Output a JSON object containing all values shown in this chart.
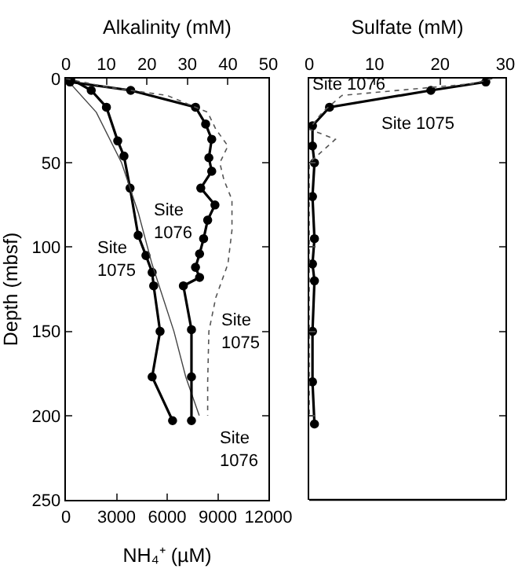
{
  "chart_data": [
    {
      "type": "line",
      "xlabel": "NH₄⁺ (µM)",
      "x2label": "Alkalinity (mM)",
      "ylabel": "Depth (mbsf)",
      "xlim": [
        0,
        12000
      ],
      "xticks": [
        0,
        3000,
        6000,
        9000,
        12000
      ],
      "x2lim": [
        0,
        50
      ],
      "x2ticks": [
        0,
        10,
        20,
        30,
        40,
        50
      ],
      "ylim": [
        250,
        0
      ],
      "yticks": [
        0,
        50,
        100,
        150,
        200,
        250
      ],
      "grid": false,
      "annotations": [
        "Site 1076",
        "Site 1075",
        "Site 1075",
        "Site 1076"
      ],
      "series": [
        {
          "color": "#000000",
          "axis": "x2",
          "marker": "circle",
          "line_style": "solid",
          "x": [
            0,
            1,
            16,
            32,
            34.5,
            36,
            35.3,
            36,
            33.3,
            36.8,
            35,
            34,
            33,
            32,
            33,
            29,
            31,
            31,
            31
          ],
          "values": [
            0,
            2,
            7,
            17,
            27,
            36,
            47,
            55,
            65,
            75,
            84,
            95,
            104,
            112,
            118,
            123,
            149,
            177,
            203
          ]
        },
        {
          "color": "#555555",
          "axis": "x2",
          "marker": "none",
          "line_style": "dotted",
          "x": [
            0,
            10,
            25,
            35,
            37,
            40,
            38,
            39,
            41,
            41,
            40,
            37,
            35.3,
            35,
            35
          ],
          "values": [
            0,
            5,
            10,
            20,
            30,
            40,
            50,
            60,
            72,
            90,
            110,
            130,
            150,
            180,
            200
          ]
        },
        {
          "color": "#000000",
          "marker": "circle",
          "line_style": "solid",
          "x": [
            280,
            1500,
            2400,
            3070,
            3440,
            3800,
            4280,
            4740,
            5110,
            5200,
            5580,
            5110,
            6320
          ],
          "values": [
            0,
            7,
            17,
            37,
            46,
            65,
            93,
            105,
            115,
            123,
            150,
            177,
            203
          ]
        },
        {
          "color": "#444444",
          "marker": "none",
          "line_style": "solid",
          "x": [
            0,
            1800,
            3300,
            4300,
            5100,
            6400,
            7100,
            7900
          ],
          "values": [
            0,
            20,
            50,
            80,
            110,
            150,
            177,
            200
          ]
        }
      ]
    },
    {
      "type": "line",
      "xlabel": "Sulfate (mM)",
      "xlim": [
        0,
        30
      ],
      "xticks": [
        0,
        10,
        20,
        30
      ],
      "ylim": [
        250,
        0
      ],
      "yticks": [
        0,
        50,
        100,
        150,
        200,
        250
      ],
      "tick_labels": "x",
      "grid": false,
      "annotations": [
        "Site 1076",
        "Site 1075"
      ],
      "series": [
        {
          "color": "#000000",
          "marker": "circle",
          "line_style": "solid",
          "x": [
            27,
            18.6,
            3.1,
            0.5,
            0.5,
            0.8,
            0.5,
            0.8,
            0.5,
            0.8,
            0.5,
            0.5,
            0.8
          ],
          "values": [
            2,
            7,
            17,
            28,
            40,
            50,
            70,
            95,
            110,
            120,
            150,
            180,
            205
          ]
        },
        {
          "color": "#555555",
          "marker": "none",
          "line_style": "dotted",
          "x": [
            28,
            25,
            5,
            2,
            0,
            4,
            0,
            0,
            0
          ],
          "values": [
            0,
            3,
            10,
            20,
            30,
            36,
            50,
            120,
            200
          ]
        }
      ]
    }
  ]
}
